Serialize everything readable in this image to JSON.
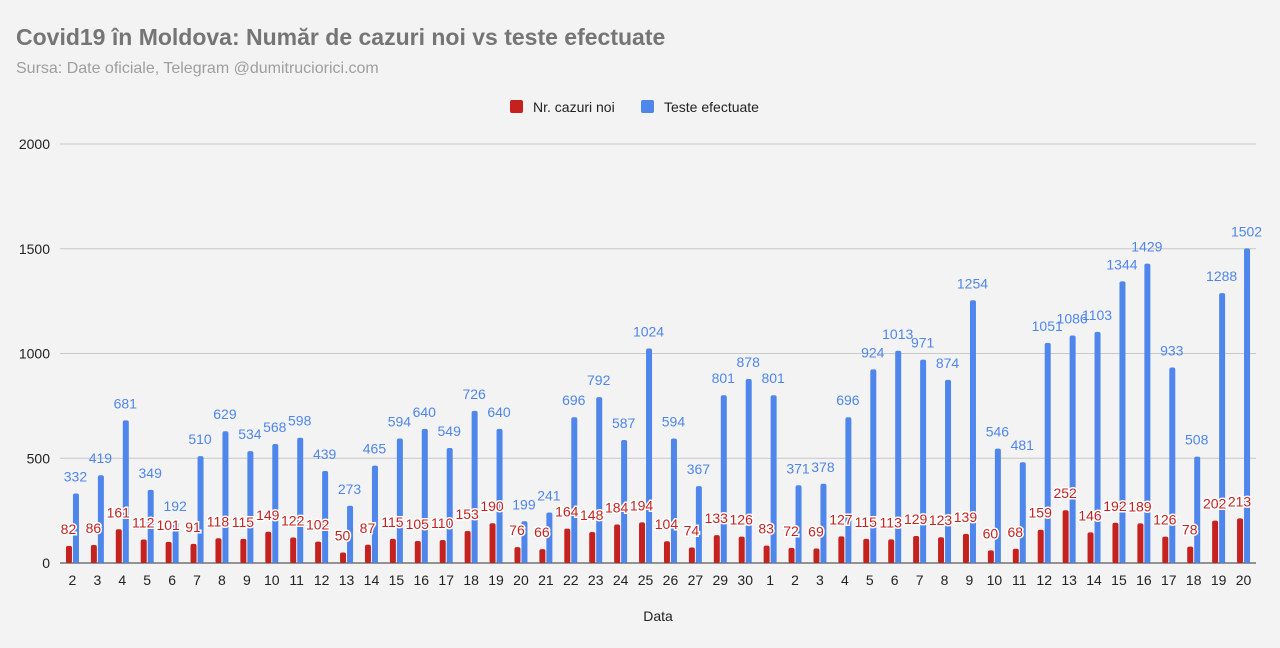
{
  "chart_data": {
    "type": "bar",
    "title": "Covid19 în Moldova: Număr de cazuri noi vs teste efectuate",
    "subtitle": "Sursa: Date oficiale, Telegram @dumitruciorici.com",
    "xlabel": "Data",
    "ylabel": "",
    "ylim": [
      0,
      2000
    ],
    "yticks": [
      0,
      500,
      1000,
      1500,
      2000
    ],
    "grid": true,
    "legend_position": "top-center",
    "colors": {
      "cases": "#c5221f",
      "tests": "#4f86ec"
    },
    "categories": [
      "2",
      "3",
      "4",
      "5",
      "6",
      "7",
      "8",
      "9",
      "10",
      "11",
      "12",
      "13",
      "14",
      "15",
      "16",
      "17",
      "18",
      "19",
      "20",
      "21",
      "22",
      "23",
      "24",
      "25",
      "26",
      "27",
      "29",
      "30",
      "1",
      "2",
      "3",
      "4",
      "5",
      "6",
      "7",
      "8",
      "9",
      "10",
      "11",
      "12",
      "13",
      "14",
      "15",
      "16",
      "17",
      "18",
      "19",
      "20"
    ],
    "series": [
      {
        "name": "Nr. cazuri noi",
        "values": [
          82,
          86,
          161,
          112,
          101,
          91,
          118,
          115,
          149,
          122,
          102,
          50,
          87,
          115,
          105,
          110,
          153,
          190,
          76,
          66,
          164,
          148,
          184,
          194,
          104,
          74,
          133,
          126,
          83,
          72,
          69,
          127,
          115,
          113,
          129,
          123,
          139,
          60,
          68,
          159,
          252,
          146,
          192,
          189,
          126,
          78,
          202,
          213
        ]
      },
      {
        "name": "Teste efectuate",
        "values": [
          332,
          419,
          681,
          349,
          192,
          510,
          629,
          534,
          568,
          598,
          439,
          273,
          465,
          594,
          640,
          549,
          726,
          640,
          199,
          241,
          696,
          792,
          587,
          1024,
          594,
          367,
          801,
          878,
          801,
          371,
          378,
          696,
          924,
          1013,
          971,
          874,
          1254,
          546,
          481,
          1051,
          1086,
          1103,
          1344,
          1429,
          933,
          508,
          1288,
          1502
        ]
      }
    ]
  }
}
